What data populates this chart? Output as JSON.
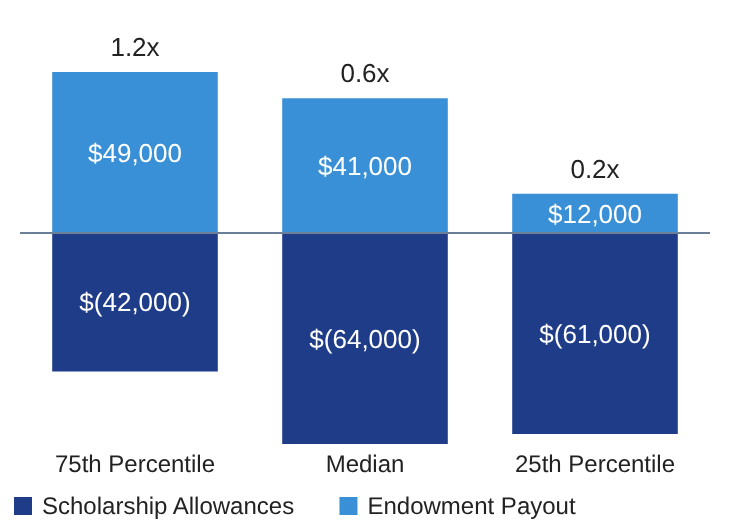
{
  "chart_data": {
    "type": "bar",
    "stacked": true,
    "categories": [
      "75th Percentile",
      "Median",
      "25th Percentile"
    ],
    "series": [
      {
        "name": "Scholarship Allowances",
        "color": "#1f3c88",
        "values": [
          -42000,
          -64000,
          -61000
        ],
        "value_labels": [
          "$(42,000)",
          "$(64,000)",
          "$(61,000)"
        ]
      },
      {
        "name": "Endowment Payout",
        "color": "#3a90d6",
        "values": [
          49000,
          41000,
          12000
        ],
        "value_labels": [
          "$49,000",
          "$41,000",
          "$12,000"
        ]
      }
    ],
    "annotations": [
      {
        "text": "1.2x",
        "x": "75th Percentile",
        "y": 49000
      },
      {
        "text": "0.6x",
        "x": "Median",
        "y": 41000
      },
      {
        "text": "0.2x",
        "x": "25th Percentile",
        "y": 12000
      }
    ],
    "ref_lines": [
      {
        "axis": "y",
        "value": 0,
        "color": "#6b7f99"
      }
    ],
    "tick_labels": "x",
    "legend": "bottom left"
  }
}
